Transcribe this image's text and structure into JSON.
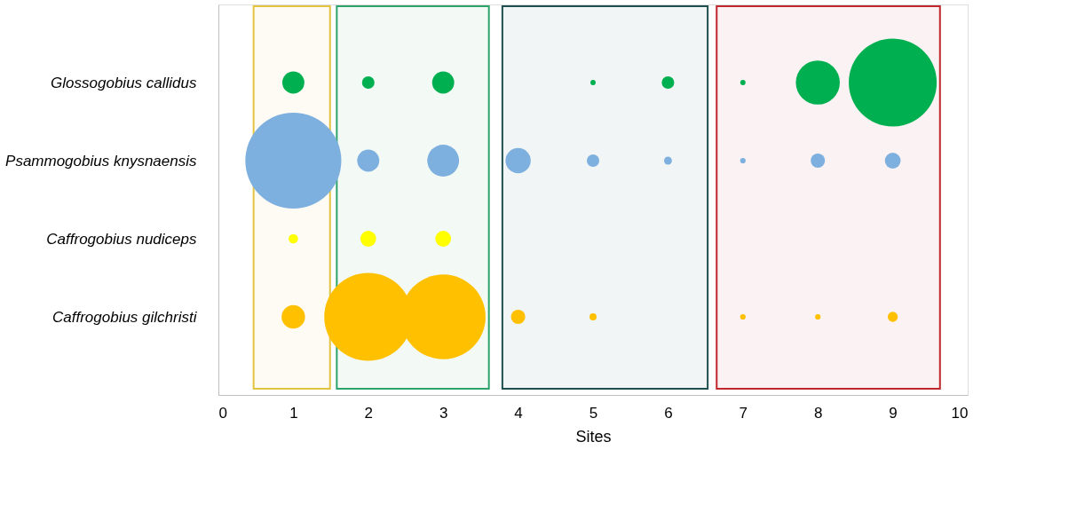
{
  "chart_data": {
    "type": "bubble",
    "orientation": "horizontal",
    "xlabel": "Sites",
    "xlim": [
      0,
      10
    ],
    "xticks": [
      0,
      1,
      2,
      3,
      4,
      5,
      6,
      7,
      8,
      9,
      10
    ],
    "categories": [
      "Glossogobius callidus",
      "Psammogobius knysnaensis",
      "Caffrogobius nudiceps",
      "Caffrogobius gilchristi"
    ],
    "grid": false,
    "legend": false,
    "series": [
      {
        "values": [
          1,
          1,
          1,
          1
        ],
        "sizes": [
          0.053,
          1,
          0.0097,
          0.06
        ],
        "colors": [
          "#00b050",
          "#7eb0df",
          "#ffff00",
          "#ffc000"
        ]
      },
      {
        "values": [
          2,
          2,
          2,
          2
        ],
        "sizes": [
          0.017,
          0.053,
          0.027,
          0.84
        ],
        "colors": [
          "#00b050",
          "#7eb0df",
          "#ffff00",
          "#ffc000"
        ]
      },
      {
        "values": [
          3,
          3,
          3,
          3
        ],
        "sizes": [
          0.053,
          0.11,
          0.027,
          0.78
        ],
        "colors": [
          "#00b050",
          "#7eb0df",
          "#ffff00",
          "#ffc000"
        ]
      },
      {
        "values": [
          null,
          4,
          null,
          4
        ],
        "sizes": [
          null,
          0.069,
          null,
          0.022
        ],
        "colors": [
          "#00b050",
          "#7eb0df",
          "#ffff00",
          "#ffc000"
        ]
      },
      {
        "values": [
          5,
          5,
          null,
          5
        ],
        "sizes": [
          0.003,
          0.017,
          null,
          0.0054
        ],
        "colors": [
          "#00b050",
          "#7eb0df",
          "#ffff00",
          "#ffc000"
        ]
      },
      {
        "values": [
          6,
          6,
          null,
          null
        ],
        "sizes": [
          0.017,
          0.0067,
          null,
          null
        ],
        "colors": [
          "#00b050",
          "#7eb0df",
          "#ffff00",
          "#ffc000"
        ]
      },
      {
        "values": [
          7,
          7,
          null,
          7
        ],
        "sizes": [
          0.003,
          0.0033,
          null,
          0.0033
        ],
        "colors": [
          "#00b050",
          "#7eb0df",
          "#ffff00",
          "#ffc000"
        ]
      },
      {
        "values": [
          8,
          8,
          null,
          8
        ],
        "sizes": [
          0.21,
          0.022,
          null,
          0.0033
        ],
        "colors": [
          "#00b050",
          "#7eb0df",
          "#ffff00",
          "#ffc000"
        ]
      },
      {
        "values": [
          9,
          9,
          null,
          9
        ],
        "sizes": [
          0.84,
          0.027,
          null,
          0.011
        ],
        "colors": [
          "#00b050",
          "#7eb0df",
          "#ffff00",
          "#ffc000"
        ]
      }
    ],
    "bands": [
      {
        "axis": "x",
        "from": 0.47,
        "to": 1.49,
        "color": "#e1c340"
      },
      {
        "axis": "x",
        "from": 1.58,
        "to": 3.61,
        "color": "#2ca36b"
      },
      {
        "axis": "x",
        "from": 3.79,
        "to": 6.53,
        "color": "#1f4e4f"
      },
      {
        "axis": "x",
        "from": 6.65,
        "to": 9.63,
        "color": "#c0272d"
      }
    ]
  }
}
